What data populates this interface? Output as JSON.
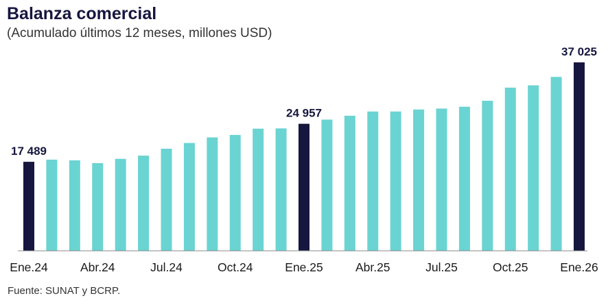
{
  "header": {
    "title": "Balanza comercial",
    "subtitle": "(Acumulado últimos 12 meses, millones USD)"
  },
  "footer": {
    "source": "Fuente: SUNAT y BCRP."
  },
  "colors": {
    "regular_bar": "#6ad4d2",
    "highlight_bar": "#16163f",
    "axis": "#888888"
  },
  "chart_data": {
    "type": "bar",
    "title": "Balanza comercial",
    "subtitle": "(Acumulado últimos 12 meses, millones USD)",
    "xlabel": "",
    "ylabel": "",
    "ylim": [
      0,
      40000
    ],
    "grid": false,
    "legend": "none",
    "x_tick_labels": [
      "Ene.24",
      "Abr.24",
      "Jul.24",
      "Oct.24",
      "Ene.25",
      "Abr.25",
      "Jul.25",
      "Oct.25",
      "Ene.26"
    ],
    "x_tick_categories": [
      "Ene.24",
      "Abr.24",
      "Jul.24",
      "Oct.24",
      "Ene.25",
      "Abr.25",
      "Jul.25",
      "Oct.25",
      "Ene.26"
    ],
    "categories": [
      "Ene.24",
      "Feb.24",
      "Mar.24",
      "Abr.24",
      "May.24",
      "Jun.24",
      "Jul.24",
      "Ago.24",
      "Set.24",
      "Oct.24",
      "Nov.24",
      "Dic.24",
      "Ene.25",
      "Feb.25",
      "Mar.25",
      "Abr.25",
      "May.25",
      "Jun.25",
      "Jul.25",
      "Ago.25",
      "Set.25",
      "Oct.25",
      "Nov.25",
      "Dic.25",
      "Ene.26"
    ],
    "values": [
      17489,
      17910,
      17770,
      17230,
      18070,
      18700,
      20060,
      21190,
      22280,
      22770,
      24000,
      24050,
      24957,
      25780,
      26540,
      27370,
      27370,
      27760,
      27950,
      28310,
      29480,
      32060,
      32510,
      34170,
      37025
    ],
    "highlighted": [
      "Ene.24",
      "Ene.25",
      "Ene.26"
    ],
    "data_labels": [
      {
        "category": "Ene.24",
        "text": "17 489"
      },
      {
        "category": "Ene.25",
        "text": "24 957"
      },
      {
        "category": "Ene.26",
        "text": "37 025"
      }
    ]
  }
}
